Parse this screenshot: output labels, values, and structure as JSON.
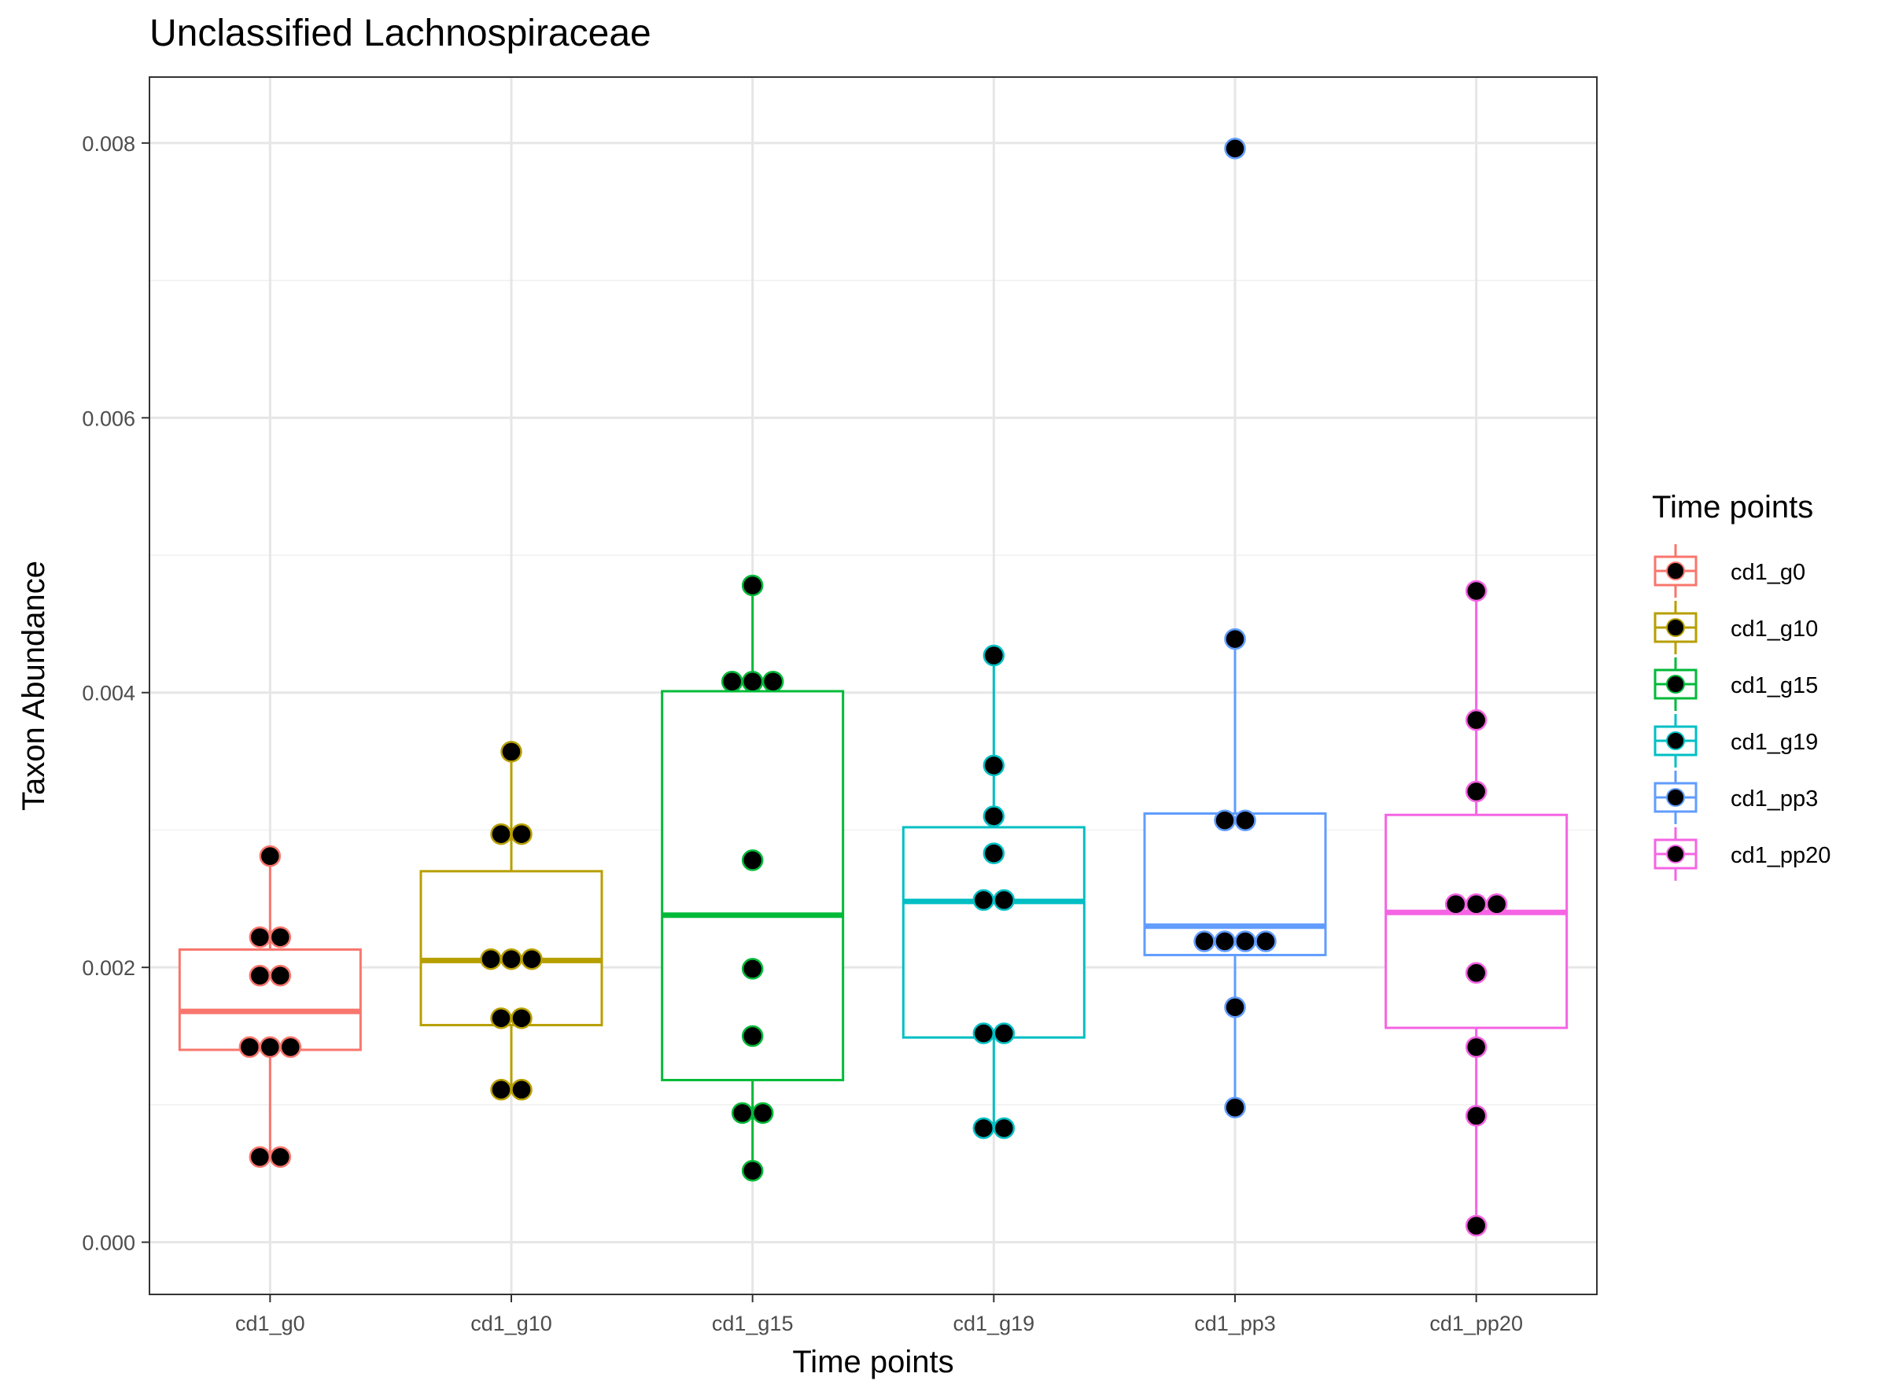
{
  "chart_data": {
    "type": "box",
    "title": "Unclassified Lachnospiraceae",
    "xlabel": "Time points",
    "ylabel": "Taxon Abundance",
    "ylim": [
      -0.00038,
      0.00848
    ],
    "yticks": [
      0.0,
      0.002,
      0.004,
      0.006,
      0.008
    ],
    "ytick_labels": [
      "0.000",
      "0.002",
      "0.004",
      "0.006",
      "0.008"
    ],
    "grid": true,
    "legend": {
      "title": "Time points",
      "position": "right"
    },
    "categories": [
      "cd1_g0",
      "cd1_g10",
      "cd1_g15",
      "cd1_g19",
      "cd1_pp3",
      "cd1_pp20"
    ],
    "colors": [
      "#F8766D",
      "#B79F00",
      "#00BA38",
      "#00BFC4",
      "#619CFF",
      "#F564E3"
    ],
    "series": [
      {
        "name": "cd1_g0",
        "box": {
          "whisker_low": 0.00062,
          "q1": 0.0014,
          "median": 0.00168,
          "q3": 0.00213,
          "whisker_high": 0.00281
        },
        "points": [
          0.00281,
          0.00222,
          0.00222,
          0.00194,
          0.00194,
          0.00142,
          0.00142,
          0.00142,
          0.00062,
          0.00062
        ]
      },
      {
        "name": "cd1_g10",
        "box": {
          "whisker_low": 0.00111,
          "q1": 0.00158,
          "median": 0.00205,
          "q3": 0.0027,
          "whisker_high": 0.00357
        },
        "points": [
          0.00357,
          0.00297,
          0.00297,
          0.00206,
          0.00206,
          0.00206,
          0.00163,
          0.00163,
          0.00111,
          0.00111
        ]
      },
      {
        "name": "cd1_g15",
        "box": {
          "whisker_low": 0.00052,
          "q1": 0.00118,
          "median": 0.00238,
          "q3": 0.00401,
          "whisker_high": 0.00478
        },
        "points": [
          0.00478,
          0.00408,
          0.00408,
          0.00408,
          0.00278,
          0.00199,
          0.0015,
          0.00094,
          0.00094,
          0.00052
        ]
      },
      {
        "name": "cd1_g19",
        "box": {
          "whisker_low": 0.00083,
          "q1": 0.00149,
          "median": 0.00248,
          "q3": 0.00302,
          "whisker_high": 0.00427
        },
        "points": [
          0.00427,
          0.00347,
          0.0031,
          0.00283,
          0.00249,
          0.00249,
          0.00152,
          0.00152,
          0.00083,
          0.00083
        ]
      },
      {
        "name": "cd1_pp3",
        "box": {
          "whisker_low": 0.00098,
          "q1": 0.00209,
          "median": 0.0023,
          "q3": 0.00312,
          "whisker_high": 0.00439
        },
        "points": [
          0.00796,
          0.00439,
          0.00307,
          0.00307,
          0.00219,
          0.00219,
          0.00219,
          0.00219,
          0.00171,
          0.00098
        ]
      },
      {
        "name": "cd1_pp20",
        "box": {
          "whisker_low": 0.00012,
          "q1": 0.00156,
          "median": 0.0024,
          "q3": 0.00311,
          "whisker_high": 0.00474
        },
        "points": [
          0.00474,
          0.0038,
          0.00328,
          0.00246,
          0.00246,
          0.00246,
          0.00196,
          0.00142,
          0.00092,
          0.00012
        ]
      }
    ]
  }
}
